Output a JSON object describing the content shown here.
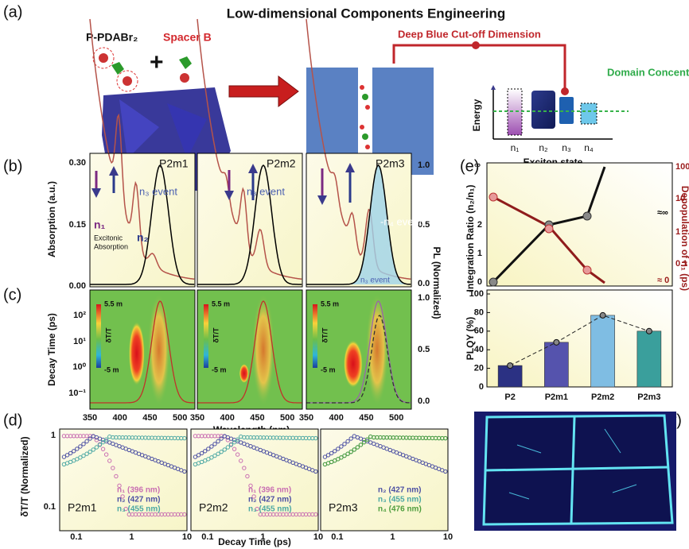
{
  "panel_a": {
    "label": "(a)",
    "title": "Low-dimensional Components Engineering",
    "molecule": "P-PDABr₂",
    "plus": "+",
    "spacer": "Spacer B",
    "cutoff": "Deep Blue Cut-off Dimension",
    "domain": "Domain Concentration",
    "energy": "Energy",
    "states": [
      "n₁",
      "n₂",
      "n₃",
      "n₄"
    ],
    "exciton": "Exciton state"
  },
  "panel_b": {
    "label": "(b)",
    "y_label": "Absorption (a.u.)",
    "y_ticks": [
      "0.30",
      "0.15",
      "0.00"
    ],
    "pl_ticks": [
      "1.0",
      "0.5",
      "0.0"
    ],
    "samples": [
      "P2m1",
      "P2m2",
      "P2m3"
    ],
    "n1": "n₁",
    "excitonic": "Excitonic",
    "absorption": "Absorption",
    "n2": "n₂",
    "n3_event": "n₃ event",
    "n4_event": "-n₄ event"
  },
  "panel_c": {
    "label": "(c)",
    "y_label": "Decay Time (ps)",
    "y_ticks": [
      "10²",
      "10¹",
      "10⁰",
      "10⁻¹"
    ],
    "pl_ticks": [
      "1.0",
      "0.5",
      "0.0"
    ],
    "scale_max": "5.5 m",
    "scale_name": "δT/T",
    "scale_min": "-5 m",
    "x_ticks": [
      "350",
      "400",
      "450",
      "500"
    ],
    "x_label": "Wavelength (nm)"
  },
  "pl_label": "PL (Normalized)",
  "panel_e": {
    "label": "(e)",
    "infinity": "∞",
    "left_ticks": [
      "2",
      "1",
      "0"
    ],
    "right_ticks": [
      "100",
      "10",
      "1",
      "0.1"
    ],
    "approx_inf": "≈∞",
    "approx_zero": "≈ 0",
    "left_label": "Integration Ratio (n₂/n₁)",
    "right_label": "Depopulation of n₁ (ps)",
    "plqy": {
      "y_label": "PLQY (%)",
      "categories": [
        "P2",
        "P2m1",
        "P2m2",
        "P2m3"
      ],
      "values": [
        23,
        48,
        77,
        60
      ],
      "colors": [
        "#2b3183",
        "#5553ad",
        "#7fbde3",
        "#3a9f9c"
      ],
      "ylim": [
        0,
        100
      ],
      "yticks": [
        0,
        20,
        40,
        60,
        80,
        100
      ]
    }
  },
  "panel_d": {
    "label": "(d)",
    "y_label": "δT/T (Normalized)",
    "y_ticks": [
      "1",
      "0.1"
    ],
    "x_ticks": [
      "0.1",
      "1",
      "10"
    ],
    "x_label": "Decay Time (ps)",
    "samples": [
      "P2m1",
      "P2m2",
      "P2m3"
    ],
    "legends": [
      [
        "n₁ (396 nm)",
        "n₂ (427 nm)",
        "n₃ (455 nm)"
      ],
      [
        "n₁ (396 nm)",
        "n₂ (427 nm)",
        "n₃ (455 nm)"
      ],
      [
        "n₂ (427 nm)",
        "n₃ (455 nm)",
        "n₄ (476 nm)"
      ]
    ]
  },
  "panel_f": {
    "label": "(f)"
  }
}
